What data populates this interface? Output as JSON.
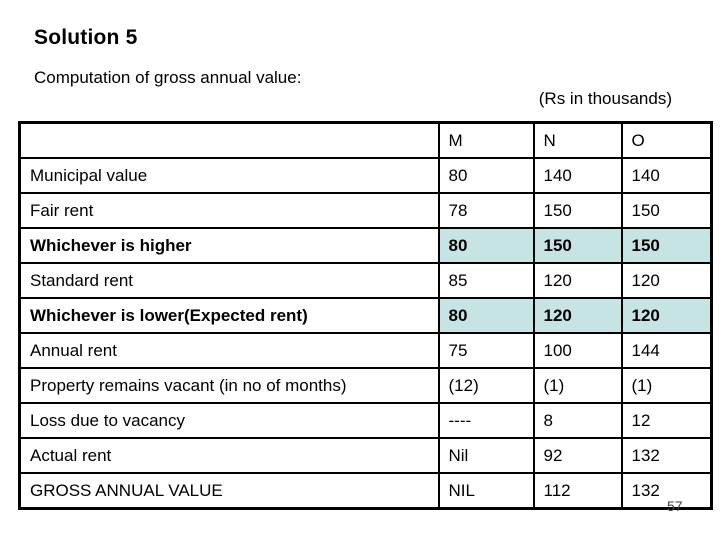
{
  "slide": {
    "title": "Solution 5",
    "subtitle": "Computation of gross annual value:",
    "unit_note": "(Rs in thousands)",
    "page_number": "57"
  },
  "table": {
    "highlight_color": "#c7e4e5",
    "columns": [
      "",
      "M",
      "N",
      "O"
    ],
    "rows": [
      {
        "label": "Municipal value",
        "values": [
          "80",
          "140",
          "140"
        ],
        "bold": false,
        "highlight": false
      },
      {
        "label": "Fair rent",
        "values": [
          "78",
          "150",
          "150"
        ],
        "bold": false,
        "highlight": false
      },
      {
        "label": "Whichever is higher",
        "values": [
          "80",
          "150",
          "150"
        ],
        "bold": true,
        "highlight": true
      },
      {
        "label": "Standard rent",
        "values": [
          "85",
          "120",
          "120"
        ],
        "bold": false,
        "highlight": false
      },
      {
        "label": "Whichever is lower(Expected rent)",
        "values": [
          "80",
          "120",
          "120"
        ],
        "bold": true,
        "highlight": true
      },
      {
        "label": "Annual rent",
        "values": [
          "75",
          "100",
          "144"
        ],
        "bold": false,
        "highlight": false
      },
      {
        "label": "Property remains vacant (in no of months)",
        "values": [
          "(12)",
          "(1)",
          "(1)"
        ],
        "bold": false,
        "highlight": false
      },
      {
        "label": "Loss due to vacancy",
        "values": [
          "----",
          "8",
          "12"
        ],
        "bold": false,
        "highlight": false
      },
      {
        "label": "Actual rent",
        "values": [
          "Nil",
          "92",
          "132"
        ],
        "bold": false,
        "highlight": false
      },
      {
        "label": "GROSS ANNUAL VALUE",
        "values": [
          "NIL",
          "112",
          "132"
        ],
        "bold": false,
        "highlight": false
      }
    ]
  }
}
